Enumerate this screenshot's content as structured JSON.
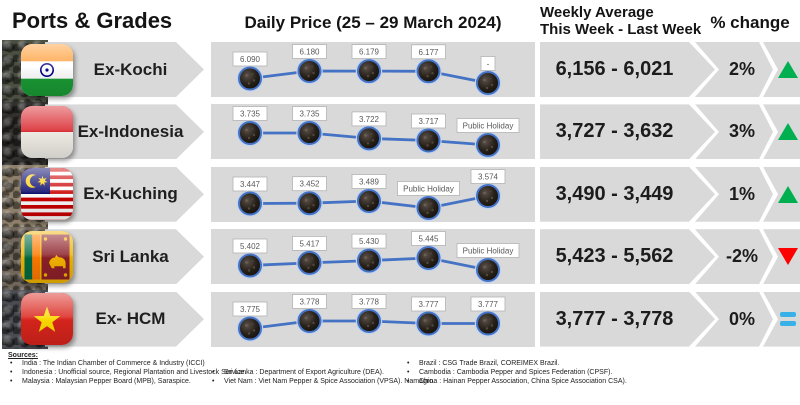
{
  "header": {
    "ports_grades": "Ports & Grades",
    "daily_price": "Daily Price (25 – 29 March 2024)",
    "weekly_avg_line1": "Weekly Average",
    "weekly_avg_line2": "This Week - Last Week",
    "pct_change": "% change"
  },
  "colors": {
    "band_gray": "#d9d9d9",
    "line_blue": "#4472c4",
    "up_green": "#00b050",
    "down_red": "#fe0000",
    "flat_blue": "#38b1e9",
    "label_border": "#b3b3b3",
    "label_text": "#595959"
  },
  "rows": [
    {
      "port": "Ex-Kochi",
      "flag": "india",
      "weekly": "6,156 - 6,021",
      "change": "2%",
      "direction": "up"
    },
    {
      "port": "Ex-Indonesia",
      "flag": "indonesia",
      "weekly": "3,727 - 3,632",
      "change": "3%",
      "direction": "up"
    },
    {
      "port": "Ex-Kuching",
      "flag": "malaysia",
      "weekly": "3,490 - 3,449",
      "change": "1%",
      "direction": "up"
    },
    {
      "port": "Sri Lanka",
      "flag": "sri_lanka",
      "weekly": "5,423 - 5,562",
      "change": "-2%",
      "direction": "down"
    },
    {
      "port": "Ex- HCM",
      "flag": "vietnam",
      "weekly": "3,777 - 3,778",
      "change": "0%",
      "direction": "flat"
    }
  ],
  "chart_data": [
    {
      "type": "line",
      "title": "Ex-Kochi",
      "period": "Daily Price (25 – 29 March 2024)",
      "point_labels": [
        "6.090",
        "6.180",
        "6.179",
        "6.177",
        "-"
      ],
      "values": [
        6.09,
        6.18,
        6.179,
        6.177,
        null
      ],
      "weekly_average": {
        "this_week": "6,156",
        "last_week": "6,021"
      },
      "pct_change": "2%",
      "trend": "up"
    },
    {
      "type": "line",
      "title": "Ex-Indonesia",
      "period": "Daily Price (25 – 29 March 2024)",
      "point_labels": [
        "3.735",
        "3.735",
        "3.722",
        "3.717",
        "Public Holiday"
      ],
      "values": [
        3.735,
        3.735,
        3.722,
        3.717,
        null
      ],
      "weekly_average": {
        "this_week": "3,727",
        "last_week": "3,632"
      },
      "pct_change": "3%",
      "trend": "up"
    },
    {
      "type": "line",
      "title": "Ex-Kuching",
      "period": "Daily Price (25 – 29 March 2024)",
      "point_labels": [
        "3.447",
        "3.452",
        "3.489",
        "Public Holiday",
        "3.574"
      ],
      "values": [
        3.447,
        3.452,
        3.489,
        null,
        3.574
      ],
      "weekly_average": {
        "this_week": "3,490",
        "last_week": "3,449"
      },
      "pct_change": "1%",
      "trend": "up"
    },
    {
      "type": "line",
      "title": "Sri Lanka",
      "period": "Daily Price (25 – 29 March 2024)",
      "point_labels": [
        "5.402",
        "5.417",
        "5.430",
        "5.445",
        "Public Holiday"
      ],
      "values": [
        5.402,
        5.417,
        5.43,
        5.445,
        null
      ],
      "weekly_average": {
        "this_week": "5,423",
        "last_week": "5,562"
      },
      "pct_change": "-2%",
      "trend": "down"
    },
    {
      "type": "line",
      "title": "Ex- HCM",
      "period": "Daily Price (25 – 29 March 2024)",
      "point_labels": [
        "3.775",
        "3.778",
        "3.778",
        "3.777",
        "3.777"
      ],
      "values": [
        3.775,
        3.778,
        3.778,
        3.777,
        3.777
      ],
      "weekly_average": {
        "this_week": "3,777",
        "last_week": "3,778"
      },
      "pct_change": "0%",
      "trend": "flat"
    }
  ],
  "sources": {
    "title": "Sources:",
    "columns": [
      [
        "India : The Indian Chamber of Commerce & Industry (ICCI)",
        "Indonesia : Unofficial source, Regional Plantation and Livestock Service.",
        "Malaysia : Malaysian Pepper Board (MPB), Saraspice."
      ],
      [
        "Sri Lanka : Department of Export Agriculture (DEA).",
        "Viet Nam : Viet Nam Pepper & Spice Association (VPSA). Namagro."
      ],
      [
        "Brazil : CSG Trade Brazil, COREIMEX Brazil.",
        "Cambodia : Cambodia Pepper and Spices Federation (CPSF).",
        "China : Hainan Pepper Association, China Spice Association CSA)."
      ]
    ]
  }
}
